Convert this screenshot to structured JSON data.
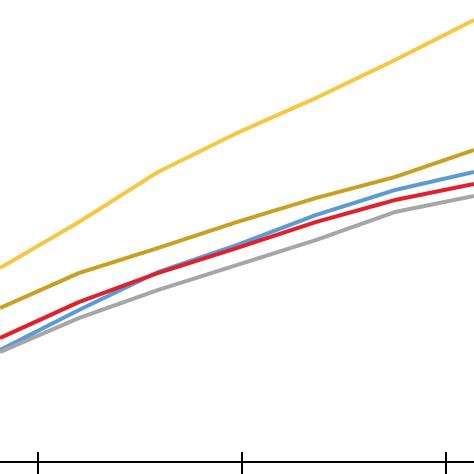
{
  "chart_data": {
    "type": "line",
    "categories": [
      null,
      null,
      null,
      null,
      null,
      null,
      null
    ],
    "ylim": [
      0,
      462
    ],
    "series": [
      {
        "color": "#f5c842",
        "values": [
          194,
          240,
          290,
          329,
          364,
          402,
          442
        ]
      },
      {
        "color": "#c9a020",
        "values": [
          154,
          189,
          214,
          240,
          264,
          285,
          312
        ]
      },
      {
        "color": "#5b9bd5",
        "values": [
          112,
          152,
          190,
          217,
          247,
          272,
          290
        ]
      },
      {
        "color": "#e0202a",
        "values": [
          124,
          160,
          189,
          214,
          240,
          262,
          278
        ]
      },
      {
        "color": "#a6a6a6",
        "values": [
          110,
          144,
          172,
          197,
          222,
          250,
          266
        ]
      }
    ]
  }
}
